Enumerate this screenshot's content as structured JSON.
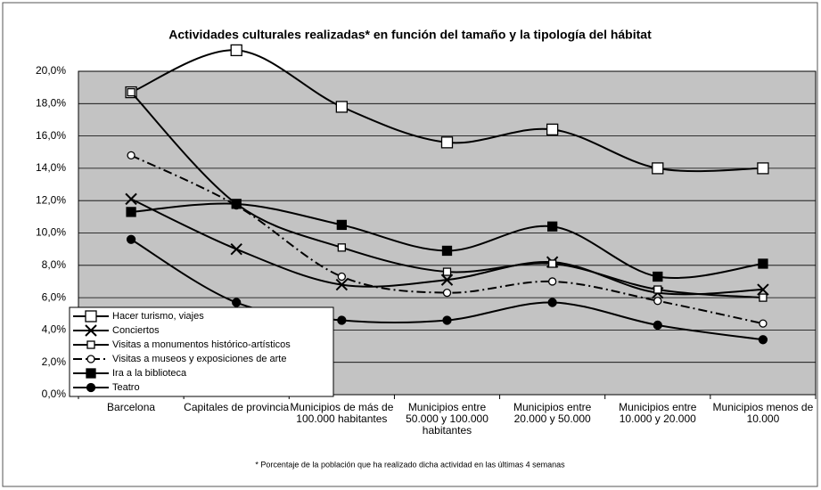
{
  "chart_data": {
    "type": "line",
    "title": "Actividades culturales realizadas* en función del tamaño y la tipología del hábitat",
    "footnote": "* Porcentaje de la población que ha realizado dicha actividad en las últimas 4 semanas",
    "categories": [
      "Barcelona",
      "Capitales de provincia",
      "Municipios de más de 100.000 habitantes",
      "Municipios entre 50.000 y 100.000 habitantes",
      "Municipios entre 20.000 y 50.000",
      "Municipios entre 10.000 y 20.000",
      "Municipios menos de 10.000"
    ],
    "ylim": [
      0,
      20
    ],
    "yticks": [
      {
        "value": 0,
        "label": "0,0%"
      },
      {
        "value": 2,
        "label": "2,0%"
      },
      {
        "value": 4,
        "label": "4,0%"
      },
      {
        "value": 6,
        "label": "6,0%"
      },
      {
        "value": 8,
        "label": "8,0%"
      },
      {
        "value": 10,
        "label": "10,0%"
      },
      {
        "value": 12,
        "label": "12,0%"
      },
      {
        "value": 14,
        "label": "14,0%"
      },
      {
        "value": 16,
        "label": "16,0%"
      },
      {
        "value": 18,
        "label": "18,0%"
      },
      {
        "value": 20,
        "label": "20,0%"
      }
    ],
    "grid": true,
    "legend": "lower left",
    "series": [
      {
        "name": "Hacer turismo, viajes",
        "color": "#000000",
        "marker": "square-open",
        "dash": "solid",
        "values": [
          18.7,
          21.3,
          17.8,
          15.6,
          16.4,
          14.0,
          14.0
        ]
      },
      {
        "name": "Conciertos",
        "color": "#000000",
        "marker": "x",
        "dash": "solid",
        "values": [
          12.1,
          9.0,
          6.8,
          7.1,
          8.2,
          6.3,
          6.5
        ]
      },
      {
        "name": "Visitas a monumentos histórico-artísticos",
        "color": "#000000",
        "marker": "square-small",
        "dash": "solid",
        "values": [
          18.7,
          11.8,
          9.1,
          7.6,
          8.1,
          6.5,
          6.0
        ]
      },
      {
        "name": "Visitas a museos y exposiciones de arte",
        "color": "#000000",
        "marker": "circle-open",
        "dash": "dashdot",
        "values": [
          14.8,
          11.7,
          7.3,
          6.3,
          7.0,
          5.8,
          4.4
        ]
      },
      {
        "name": "Ira a la biblioteca",
        "color": "#000000",
        "marker": "square-filled",
        "dash": "solid",
        "values": [
          11.3,
          11.8,
          10.5,
          8.9,
          10.4,
          7.3,
          8.1
        ]
      },
      {
        "name": "Teatro",
        "color": "#000000",
        "marker": "circle-filled",
        "dash": "solid",
        "values": [
          9.6,
          5.7,
          4.6,
          4.6,
          5.7,
          4.3,
          3.4
        ]
      }
    ]
  }
}
